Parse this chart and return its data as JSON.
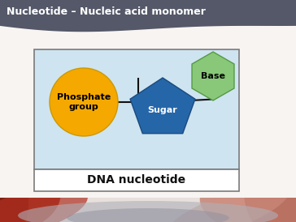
{
  "title": "Nucleotide – Nucleic acid monomer",
  "title_color": "#ffffff",
  "title_bg_left": "#5a5e6e",
  "title_bg_right": "#e09060",
  "bg_color": "#e8e0dc",
  "diagram_bg": "#cee4f0",
  "diagram_border": "#7a7a7a",
  "phosphate_color": "#f5a800",
  "phosphate_label": "Phosphate\ngroup",
  "sugar_color": "#2566a8",
  "sugar_label": "Sugar",
  "base_color": "#88c878",
  "base_label": "Base",
  "connector_color": "#111111",
  "label_fontsize": 8,
  "title_fontsize": 9,
  "caption": "DNA nucleotide",
  "caption_fontsize": 10,
  "caption_color": "#111111",
  "swirl_color1": "#e08858",
  "swirl_color2": "#d4c0b0",
  "bottom_red": "#b03020",
  "bottom_pink": "#c08070"
}
